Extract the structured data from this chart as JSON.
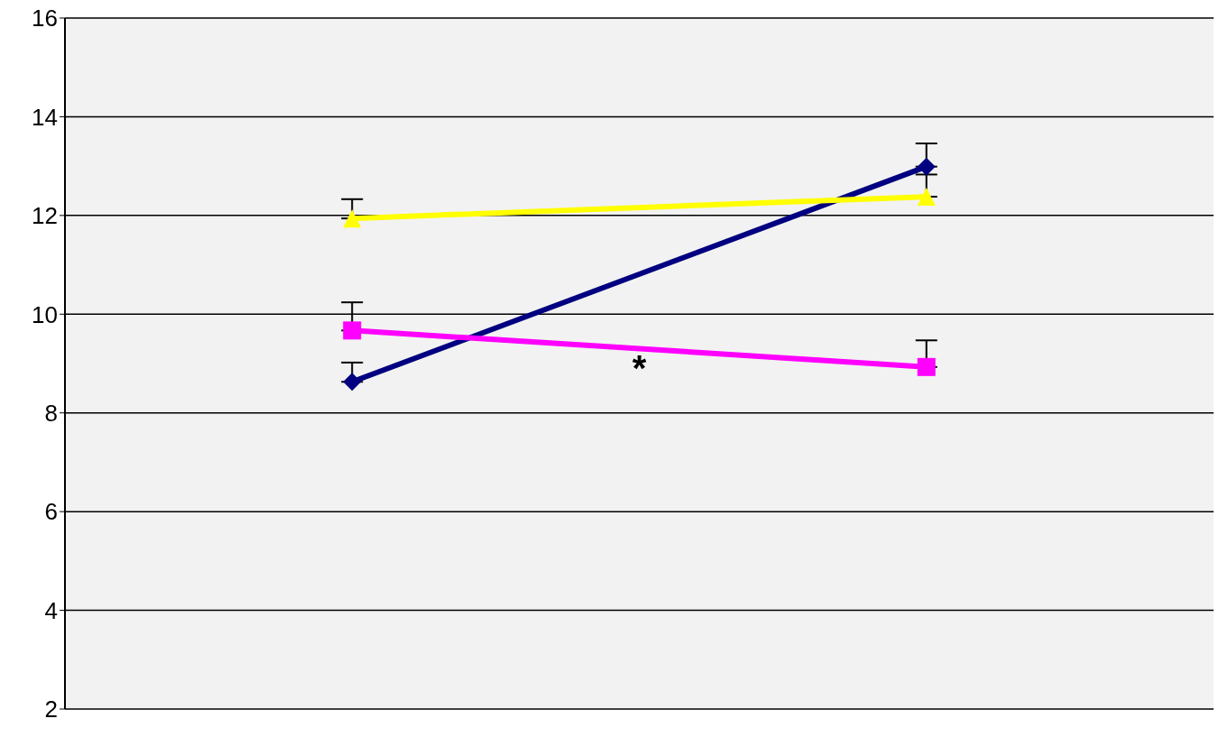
{
  "chart_data": {
    "type": "line",
    "categories": [
      null,
      null
    ],
    "series": [
      {
        "color": "#000080",
        "marker": "diamond",
        "values": [
          8.63,
          12.99
        ],
        "errors": [
          [
            8.63,
            9.02
          ],
          [
            12.99,
            13.46
          ]
        ]
      },
      {
        "color": "#ff00ff",
        "marker": "square",
        "values": [
          9.67,
          8.93
        ],
        "errors": [
          [
            9.67,
            10.24
          ],
          [
            8.93,
            9.47
          ]
        ]
      },
      {
        "color": "#ffff00",
        "marker": "triangle",
        "values": [
          11.94,
          12.38
        ],
        "errors": [
          [
            11.94,
            12.33
          ],
          [
            12.38,
            12.83
          ]
        ]
      }
    ],
    "ylim": [
      2,
      16
    ],
    "yticks": [
      2,
      4,
      6,
      8,
      10,
      12,
      14,
      16
    ],
    "grid": "y",
    "legend": false,
    "annotations": [
      "*"
    ]
  }
}
